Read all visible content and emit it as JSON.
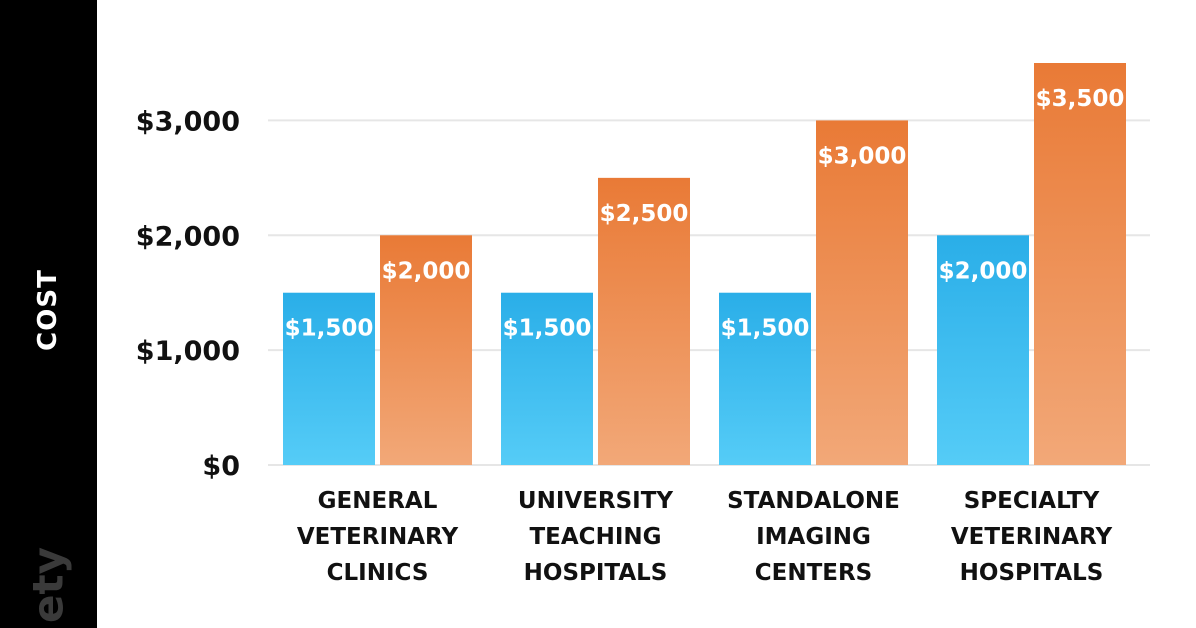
{
  "chart_data": {
    "type": "bar",
    "ylabel": "COST",
    "categories": [
      [
        "GENERAL",
        "VETERINARY",
        "CLINICS"
      ],
      [
        "UNIVERSITY",
        "TEACHING",
        "HOSPITALS"
      ],
      [
        "STANDALONE",
        "IMAGING",
        "CENTERS"
      ],
      [
        "SPECIALTY",
        "VETERINARY",
        "HOSPITALS"
      ]
    ],
    "series": [
      {
        "values": [
          1500,
          1500,
          1500,
          2000
        ],
        "labels": [
          "$1,500",
          "$1,500",
          "$1,500",
          "$2,000"
        ]
      },
      {
        "values": [
          2000,
          2500,
          3000,
          3500
        ],
        "labels": [
          "$2,000",
          "$2,500",
          "$3,000",
          "$3,500"
        ]
      }
    ],
    "yticks": [
      {
        "value": 0,
        "label": "$0"
      },
      {
        "value": 1000,
        "label": "$1,000"
      },
      {
        "value": 2000,
        "label": "$2,000"
      },
      {
        "value": 3000,
        "label": "$3,000"
      }
    ],
    "ylim": [
      0,
      3500
    ],
    "grid": true,
    "colors": {
      "series_a_top": "#2aaee8",
      "series_a_bottom": "#55ccf7",
      "series_b_top": "#e97a36",
      "series_b_bottom": "#f2a878",
      "band": "#000000",
      "grid": "#e6e6e6"
    }
  },
  "watermark": "ety"
}
